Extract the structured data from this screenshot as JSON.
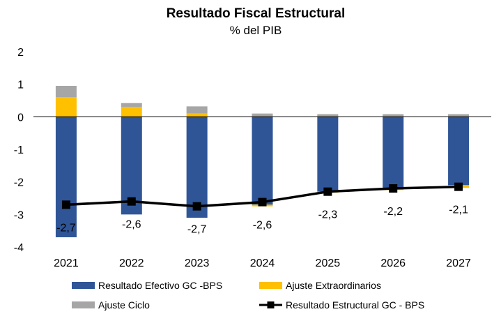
{
  "chart_data": {
    "type": "bar",
    "title": "Resultado Fiscal Estructural",
    "subtitle": "% del PIB",
    "categories": [
      "2021",
      "2022",
      "2023",
      "2024",
      "2025",
      "2026",
      "2027"
    ],
    "ylim": [
      -4,
      2
    ],
    "yticks": [
      2,
      1,
      0,
      -1,
      -2,
      -3,
      -4
    ],
    "stacked": true,
    "series": [
      {
        "name": "Resultado Efectivo GC -BPS",
        "type": "bar",
        "color": "#2F5597",
        "values": [
          -3.7,
          -3.0,
          -3.1,
          -2.7,
          -2.3,
          -2.2,
          -2.1
        ]
      },
      {
        "name": "Ajuste Extraordinarios",
        "type": "bar",
        "color": "#FFC000",
        "values": [
          0.6,
          0.3,
          0.1,
          -0.05,
          -0.03,
          -0.05,
          -0.08
        ]
      },
      {
        "name": "Ajuste Ciclo",
        "type": "bar",
        "color": "#A6A6A6",
        "values": [
          0.35,
          0.12,
          0.22,
          0.1,
          0.08,
          0.08,
          0.08
        ]
      },
      {
        "name": "Resultado Estructural GC - BPS",
        "type": "line",
        "color": "#000000",
        "values": [
          -2.7,
          -2.6,
          -2.75,
          -2.62,
          -2.3,
          -2.2,
          -2.15
        ]
      }
    ],
    "data_labels": [
      "-2,7",
      "-2,6",
      "-2,7",
      "-2,6",
      "-2,3",
      "-2,2",
      "-2,1"
    ],
    "legend": {
      "placement": "bottom",
      "items": [
        {
          "label": "Resultado Efectivo GC -BPS",
          "kind": "box",
          "color": "#2F5597"
        },
        {
          "label": "Ajuste Extraordinarios",
          "kind": "box",
          "color": "#FFC000"
        },
        {
          "label": "Ajuste Ciclo",
          "kind": "box",
          "color": "#A6A6A6"
        },
        {
          "label": "Resultado Estructural GC - BPS",
          "kind": "line-marker",
          "color": "#000000"
        }
      ]
    },
    "grid": false
  }
}
